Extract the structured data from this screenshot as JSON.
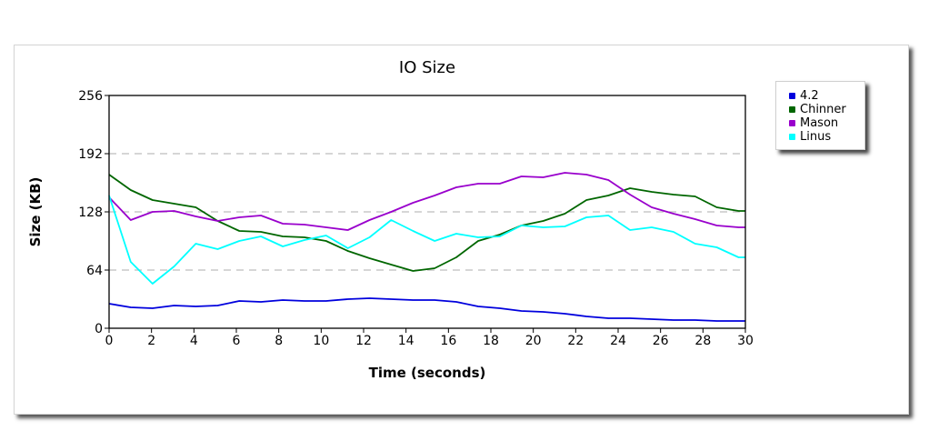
{
  "chart_data": {
    "type": "line",
    "title": "IO Size",
    "xlabel": "Time (seconds)",
    "ylabel": "Size (KB)",
    "xlim": [
      0,
      30
    ],
    "ylim": [
      0,
      256
    ],
    "x_ticks": [
      "0",
      "2",
      "4",
      "6",
      "8",
      "10",
      "12",
      "14",
      "16",
      "18",
      "20",
      "22",
      "24",
      "26",
      "28",
      "30"
    ],
    "y_ticks": [
      "0",
      "64",
      "128",
      "192",
      "256"
    ],
    "grid": "horizontal dashed",
    "legend_position": "outside right",
    "x": [
      0,
      1.02,
      2.05,
      3.07,
      4.09,
      5.12,
      6.14,
      7.16,
      8.19,
      9.21,
      10.23,
      11.26,
      12.28,
      13.3,
      14.33,
      15.35,
      16.37,
      17.4,
      18.42,
      19.44,
      20.47,
      21.49,
      22.51,
      23.54,
      24.56,
      25.58,
      26.61,
      27.63,
      28.65,
      29.68,
      30
    ],
    "series": [
      {
        "name": "4.2",
        "color": "#0000dd",
        "values": [
          27,
          23,
          22,
          25,
          24,
          25,
          30,
          29,
          31,
          30,
          30,
          32,
          33,
          32,
          31,
          31,
          29,
          24,
          22,
          19,
          18,
          16,
          13,
          11,
          11,
          10,
          9,
          9,
          8,
          8,
          8
        ]
      },
      {
        "name": "Chinner",
        "color": "#006600",
        "values": [
          169,
          152,
          141,
          137,
          133,
          118,
          107,
          106,
          101,
          100,
          96,
          85,
          77,
          70,
          63,
          66,
          78,
          96,
          103,
          113,
          118,
          126,
          141,
          146,
          154,
          150,
          147,
          145,
          133,
          129,
          129
        ]
      },
      {
        "name": "Mason",
        "color": "#9900cc",
        "values": [
          144,
          119,
          128,
          129,
          123,
          118,
          122,
          124,
          115,
          114,
          111,
          108,
          119,
          128,
          138,
          146,
          155,
          159,
          159,
          167,
          166,
          171,
          169,
          163,
          147,
          133,
          126,
          120,
          113,
          111,
          111
        ]
      },
      {
        "name": "Linus",
        "color": "#00ffff",
        "values": [
          146,
          73,
          49,
          68,
          93,
          87,
          96,
          101,
          90,
          97,
          102,
          88,
          100,
          119,
          107,
          96,
          104,
          100,
          101,
          113,
          111,
          112,
          122,
          124,
          108,
          111,
          106,
          93,
          89,
          78,
          78
        ]
      }
    ]
  }
}
